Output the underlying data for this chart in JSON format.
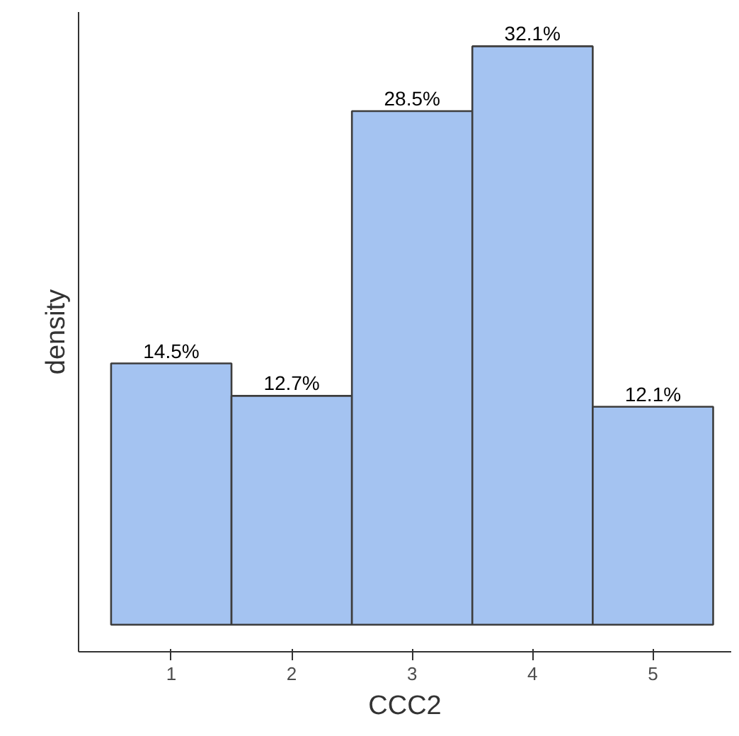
{
  "chart_data": {
    "type": "bar",
    "xlabel": "CCC2",
    "ylabel": "density",
    "categories": [
      "1",
      "2",
      "3",
      "4",
      "5"
    ],
    "values": [
      14.5,
      12.7,
      28.5,
      32.1,
      12.1
    ],
    "value_labels": [
      "14.5%",
      "12.7%",
      "28.5%",
      "32.1%",
      "12.1%"
    ],
    "color": "#a4c3f1",
    "ylim": [
      -1.5,
      34
    ],
    "tick_labels": "x",
    "grid": false
  }
}
